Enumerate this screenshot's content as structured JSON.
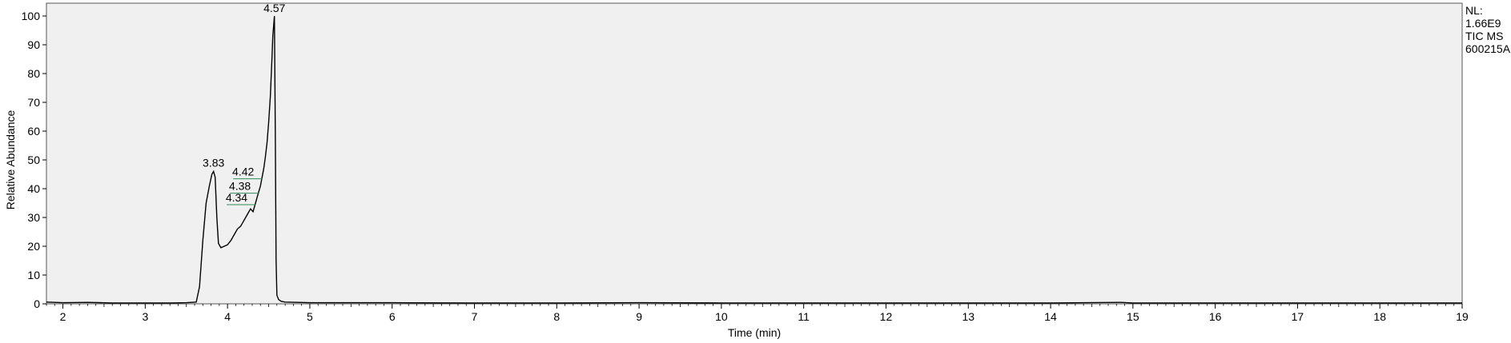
{
  "chart_data": {
    "type": "line",
    "xlabel": "Time (min)",
    "ylabel": "Relative Abundance",
    "xlim": [
      1.8,
      19.0
    ],
    "ylim": [
      0,
      100
    ],
    "x_ticks": [
      2,
      3,
      4,
      5,
      6,
      7,
      8,
      9,
      10,
      11,
      12,
      13,
      14,
      15,
      16,
      17,
      18,
      19
    ],
    "y_ticks": [
      0,
      10,
      20,
      30,
      40,
      50,
      60,
      70,
      80,
      90,
      100
    ],
    "grid": false,
    "series": [
      {
        "x": [
          1.8,
          2.0,
          2.3,
          2.6,
          3.0,
          3.3,
          3.5,
          3.62,
          3.66,
          3.7,
          3.74,
          3.78,
          3.81,
          3.83,
          3.85,
          3.87,
          3.89,
          3.92,
          3.96,
          4.0,
          4.04,
          4.08,
          4.12,
          4.16,
          4.2,
          4.24,
          4.28,
          4.31,
          4.34,
          4.36,
          4.38,
          4.4,
          4.42,
          4.44,
          4.46,
          4.48,
          4.5,
          4.52,
          4.54,
          4.55,
          4.57,
          4.58,
          4.59,
          4.6,
          4.62,
          4.65,
          4.7,
          5.0,
          6.0,
          7.0,
          8.0,
          9.0,
          10.0,
          12.0,
          14.0,
          14.85,
          15.0,
          17.0,
          19.0
        ],
        "y": [
          0.6,
          0.4,
          0.5,
          0.3,
          0.3,
          0.3,
          0.4,
          0.6,
          6,
          22,
          35,
          41,
          45,
          46,
          44,
          30,
          21,
          19.5,
          20,
          20.5,
          22,
          24,
          26,
          27,
          29,
          31,
          33,
          32,
          35,
          37,
          39,
          41,
          44,
          47,
          51,
          56,
          63,
          72,
          85,
          93,
          100,
          60,
          15,
          3,
          1.5,
          0.9,
          0.6,
          0.4,
          0.4,
          0.3,
          0.3,
          0.4,
          0.3,
          0.3,
          0.3,
          0.5,
          0.3,
          0.3,
          0.3
        ]
      }
    ],
    "peaks": [
      {
        "x": 3.83,
        "y": 46,
        "label": "3.83"
      },
      {
        "x": 4.34,
        "y": 35,
        "label": "4.34"
      },
      {
        "x": 4.38,
        "y": 39,
        "label": "4.38"
      },
      {
        "x": 4.42,
        "y": 44,
        "label": "4.42"
      },
      {
        "x": 4.57,
        "y": 100,
        "label": "4.57"
      }
    ]
  },
  "info": {
    "line1": "NL:",
    "line2": "1.66E9",
    "line3": "TIC  MS",
    "line4": "600215A"
  },
  "colors": {
    "plot_background": "#f0f0f0",
    "trace": "#000000",
    "peak_marker": "#2e8b57"
  }
}
